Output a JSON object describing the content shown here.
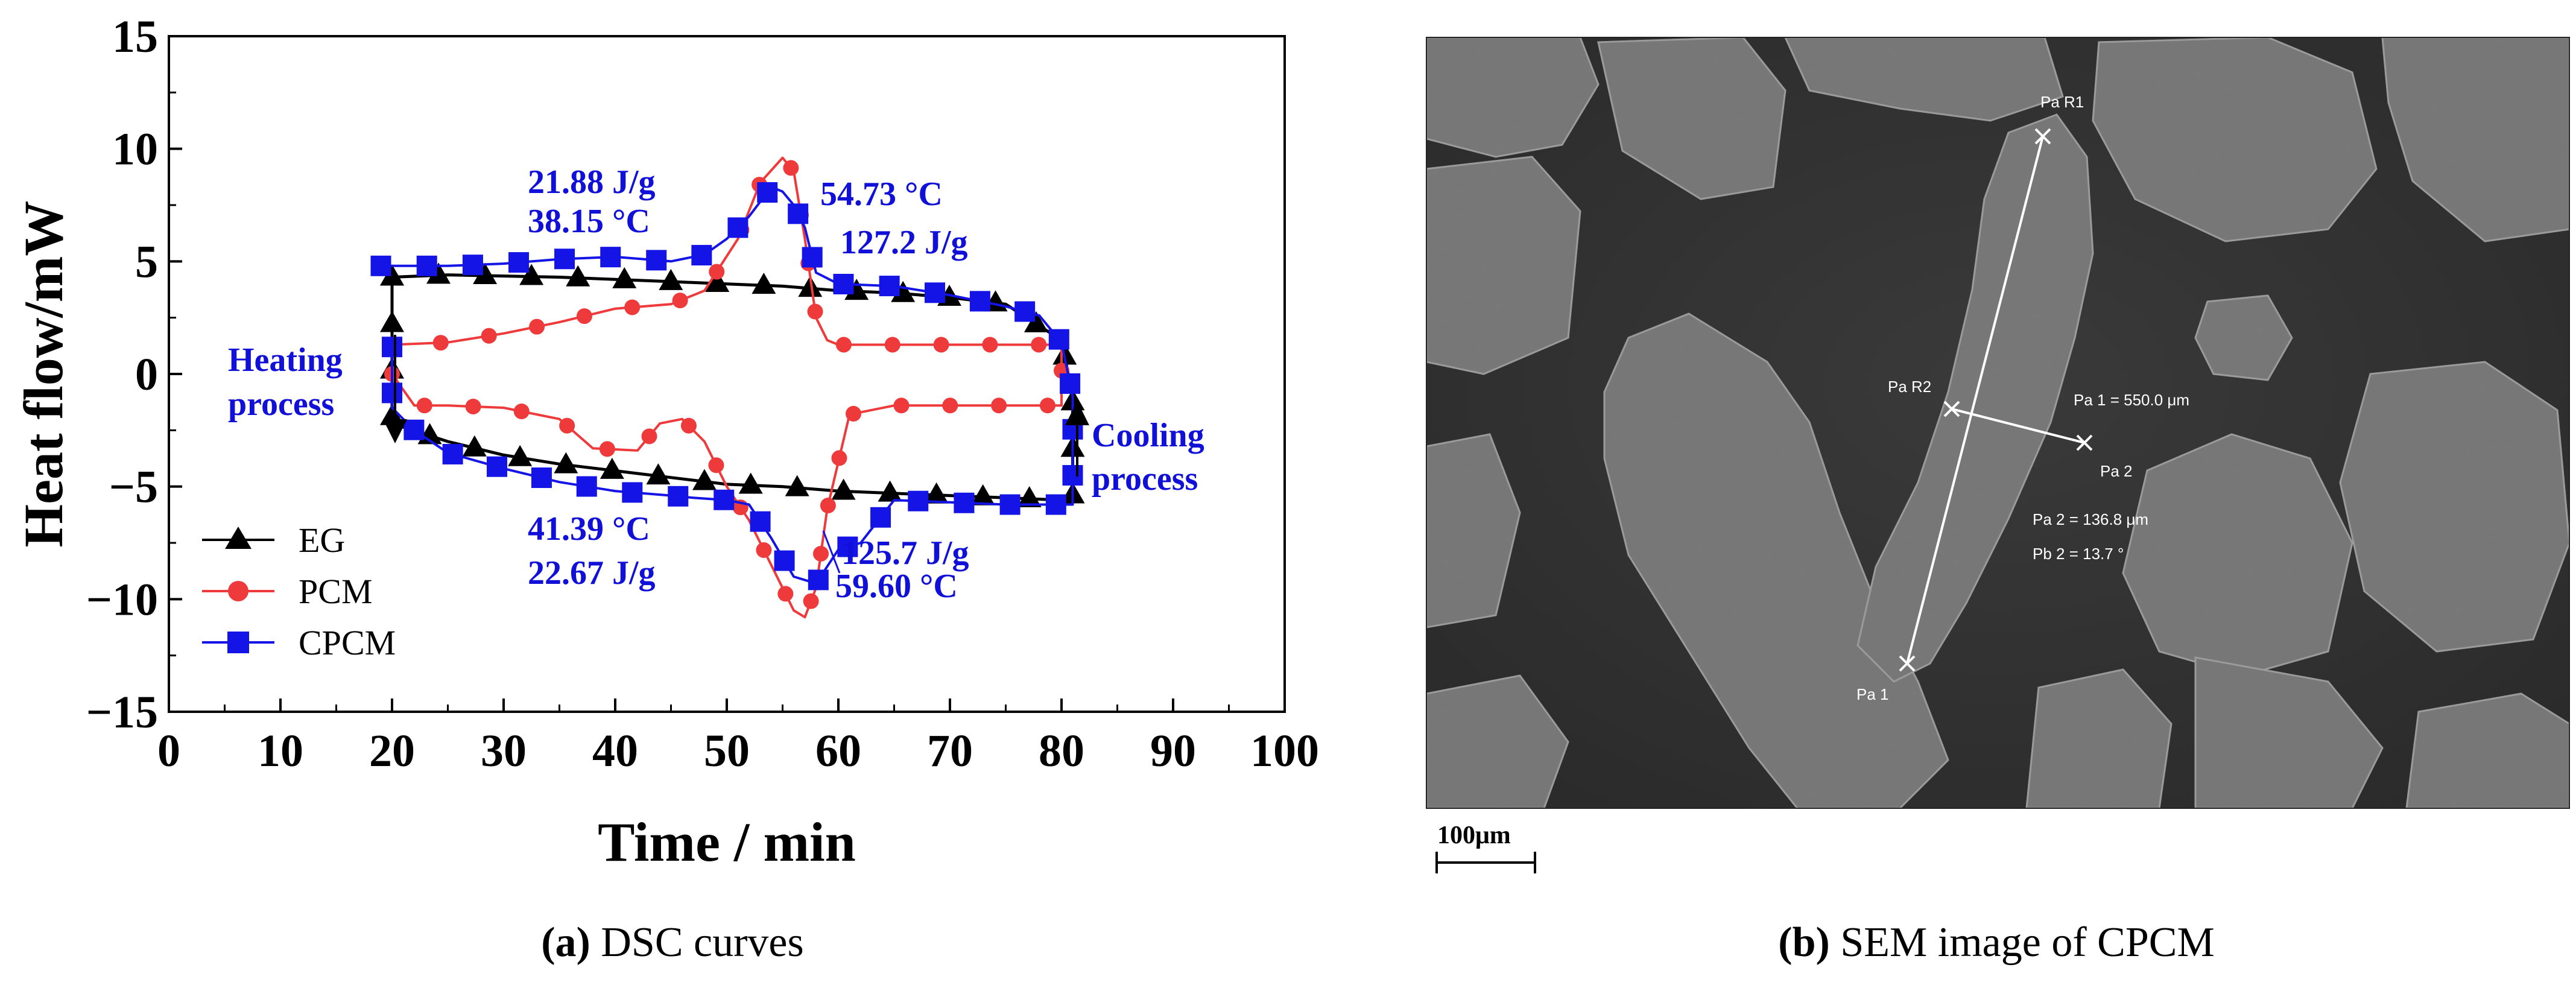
{
  "colors": {
    "eg": "#000000",
    "pcm": "#ee3a3a",
    "cpcm": "#1414e6",
    "annotation": "#1010d8"
  },
  "chart_data": {
    "type": "line",
    "title": "",
    "xlabel": "Time / min",
    "ylabel": "Heat flow/mW",
    "xlim": [
      0,
      100
    ],
    "ylim": [
      -15,
      15
    ],
    "xticks": [
      "0",
      "10",
      "20",
      "30",
      "40",
      "50",
      "60",
      "70",
      "80",
      "90",
      "100"
    ],
    "yticks": [
      "15",
      "10",
      "5",
      "0",
      "−5",
      "−10",
      "−15"
    ],
    "legend_position": "bottom-left",
    "series": [
      {
        "name": "EG",
        "marker": "triangle",
        "color": "#000000",
        "x": [
          20,
          25,
          30,
          35,
          40,
          45,
          50,
          55,
          60,
          65,
          70,
          75,
          80,
          81,
          81,
          80,
          75,
          70,
          65,
          60,
          55,
          50,
          45,
          40,
          35,
          30,
          25,
          20,
          20,
          20
        ],
        "y": [
          4.3,
          4.4,
          4.35,
          4.3,
          4.2,
          4.1,
          4.0,
          3.9,
          3.7,
          3.6,
          3.4,
          3.1,
          1.5,
          -1,
          -5.5,
          -5.6,
          -5.5,
          -5.4,
          -5.3,
          -5.2,
          -5.0,
          -4.9,
          -4.6,
          -4.3,
          -4.0,
          -3.6,
          -3.0,
          -2.2,
          1.2,
          4.3
        ],
        "marker_x": [
          20,
          23,
          26.5,
          30,
          33.5,
          37,
          40.5,
          44,
          47.5,
          51,
          54.5,
          58,
          61.5,
          65,
          68.5,
          72,
          75.5,
          79,
          81,
          78,
          75,
          72,
          68,
          65,
          61,
          58,
          55,
          52,
          48,
          45,
          41,
          38,
          35,
          31,
          28,
          25,
          22
        ]
      },
      {
        "name": "PCM",
        "marker": "circle",
        "color": "#ee3a3a",
        "x": [
          20,
          25,
          30,
          35,
          40,
          45,
          48,
          51,
          53,
          55,
          56,
          57,
          58,
          59,
          60,
          62,
          65,
          70,
          75,
          80,
          80,
          75,
          70,
          65,
          61,
          59,
          58,
          57,
          56,
          54,
          52,
          50,
          48,
          46,
          44,
          42,
          38,
          35,
          30,
          25,
          22,
          20
        ],
        "y": [
          1.3,
          1.4,
          1.8,
          2.3,
          2.9,
          3.1,
          3.7,
          6.0,
          8.5,
          9.6,
          9.0,
          6.0,
          2.5,
          1.5,
          1.3,
          1.3,
          1.3,
          1.3,
          1.3,
          1.3,
          -1.4,
          -1.4,
          -1.4,
          -1.4,
          -1.8,
          -6.0,
          -9.5,
          -10.8,
          -10.5,
          -8.5,
          -6.5,
          -5.0,
          -3.0,
          -2.0,
          -2.2,
          -3.4,
          -3.3,
          -2.0,
          -1.5,
          -1.4,
          -1.4,
          0
        ],
        "marker_x": [
          20,
          23,
          26,
          29,
          32,
          35,
          38,
          41,
          44,
          47,
          50,
          53,
          56,
          59,
          62,
          65,
          68,
          71,
          74,
          77,
          80,
          78,
          75,
          72,
          69,
          66,
          63,
          60,
          57,
          54,
          51,
          48,
          45,
          42,
          39,
          36,
          33,
          30,
          27,
          24,
          21
        ]
      },
      {
        "name": "CPCM",
        "marker": "square",
        "color": "#1414e6",
        "x": [
          19,
          22,
          25,
          30,
          35,
          40,
          45,
          48,
          50,
          52,
          54,
          55,
          56,
          57,
          58,
          60,
          65,
          70,
          75,
          78,
          80,
          81,
          81,
          78,
          75,
          70,
          65,
          62,
          60,
          58,
          56,
          54,
          52,
          50,
          47,
          45,
          40,
          35,
          30,
          25,
          22,
          20,
          20
        ],
        "y": [
          4.8,
          4.8,
          4.8,
          4.9,
          5.1,
          5.2,
          5.0,
          5.3,
          6.0,
          7.0,
          8.3,
          8.1,
          7.5,
          6.5,
          4.5,
          4.0,
          3.9,
          3.5,
          3.0,
          2.6,
          1.4,
          -1.0,
          -5.8,
          -5.8,
          -5.8,
          -5.7,
          -5.6,
          -7.5,
          -7.8,
          -9.3,
          -9.0,
          -7.3,
          -5.8,
          -5.6,
          -5.5,
          -5.4,
          -5.2,
          -4.8,
          -4.2,
          -3.5,
          -2.5,
          -1.5,
          1.2
        ],
        "marker_x": [
          19,
          20,
          24,
          28,
          31,
          34,
          37.5,
          41,
          44,
          47.5,
          51,
          54.5,
          57.5,
          61,
          64,
          67.5,
          70.5,
          74,
          77,
          79.5,
          81,
          78,
          75,
          71,
          68,
          65,
          61,
          57,
          54,
          51,
          48,
          45,
          42,
          38,
          35,
          32,
          28,
          25,
          22,
          20
        ]
      }
    ],
    "annotations": [
      {
        "lines": [
          "21.88 J/g",
          "38.15 °C"
        ]
      },
      {
        "lines": [
          "54.73 °C",
          "127.2 J/g"
        ]
      },
      {
        "lines": [
          "Heating",
          "process"
        ]
      },
      {
        "lines": [
          "Cooling",
          "process"
        ]
      },
      {
        "lines": [
          "41.39 °C",
          "22.67 J/g"
        ]
      },
      {
        "lines": [
          "125.7 J/g",
          "59.60 °C"
        ]
      }
    ]
  },
  "panel_a": {
    "caption_letter": "(a)",
    "caption_text": " DSC curves"
  },
  "panel_b": {
    "caption_letter": "(b)",
    "caption_text": " SEM image of CPCM",
    "scale_bar_label": "100μm",
    "measurements": {
      "pa_r1": "Pa R1",
      "pa_r2": "Pa R2",
      "pa1": "Pa 1",
      "pa2": "Pa 2",
      "pa1_value": "Pa 1 = 550.0 μm",
      "pa2_value": "Pa 2 = 136.8 μm",
      "pb2_value": "Pb 2 = 13.7 °"
    }
  }
}
